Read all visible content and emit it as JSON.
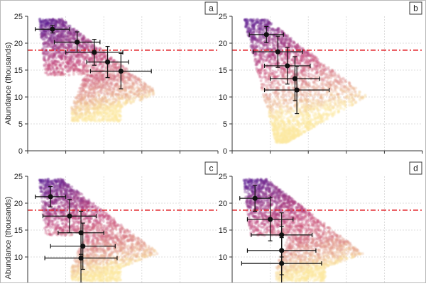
{
  "figure": {
    "ylabel": "Abundance  (thousands)",
    "colors": {
      "threshold": "#e0151b",
      "marker": "#111111",
      "grid": "#d4d4d4",
      "axis": "#333333",
      "cloud_high": "#5b1e93",
      "cloud_mid": "#c6487a",
      "cloud_low": "#fbe7a1"
    }
  },
  "chart_data": [
    {
      "type": "scatter",
      "panel_label": "a",
      "ylabel": "Abundance  (thousands)",
      "ylim": [
        0,
        25
      ],
      "yticks": [
        0,
        5,
        10,
        15,
        20,
        25
      ],
      "xlim": [
        0,
        10
      ],
      "grid": true,
      "threshold": 18.7,
      "points": [
        {
          "x": 1.3,
          "y": 22.6,
          "xerr": 0.9,
          "yerr": 0.7
        },
        {
          "x": 2.6,
          "y": 20.2,
          "xerr": 1.2,
          "yerr": 1.9
        },
        {
          "x": 3.5,
          "y": 18.3,
          "xerr": 1.5,
          "yerr": 2.4
        },
        {
          "x": 4.2,
          "y": 16.5,
          "xerr": 1.1,
          "yerr": 2.9
        },
        {
          "x": 4.9,
          "y": 14.8,
          "xerr": 1.6,
          "yerr": 3.3
        }
      ]
    },
    {
      "type": "scatter",
      "panel_label": "b",
      "ylabel": "",
      "ylim": [
        0,
        25
      ],
      "yticks": [
        0,
        5,
        10,
        15,
        20,
        25
      ],
      "xlim": [
        0,
        10
      ],
      "grid": true,
      "threshold": 18.7,
      "points": [
        {
          "x": 1.8,
          "y": 21.6,
          "xerr": 0.9,
          "yerr": 1.5
        },
        {
          "x": 2.4,
          "y": 18.4,
          "xerr": 1.3,
          "yerr": 2.9
        },
        {
          "x": 2.9,
          "y": 15.8,
          "xerr": 1.2,
          "yerr": 3.4
        },
        {
          "x": 3.3,
          "y": 13.4,
          "xerr": 1.3,
          "yerr": 4.1
        },
        {
          "x": 3.4,
          "y": 11.3,
          "xerr": 1.7,
          "yerr": 4.4
        }
      ]
    },
    {
      "type": "scatter",
      "panel_label": "c",
      "ylabel": "Abundance  (thousands)",
      "ylim": [
        5,
        25
      ],
      "yticks": [
        10,
        15,
        20,
        25
      ],
      "xlim": [
        0,
        10
      ],
      "grid": true,
      "threshold": 18.7,
      "points": [
        {
          "x": 1.2,
          "y": 21.2,
          "xerr": 0.8,
          "yerr": 1.9
        },
        {
          "x": 2.2,
          "y": 17.6,
          "xerr": 1.4,
          "yerr": 3.1
        },
        {
          "x": 2.8,
          "y": 14.5,
          "xerr": 1.2,
          "yerr": 4.0
        },
        {
          "x": 2.9,
          "y": 12.0,
          "xerr": 1.7,
          "yerr": 4.3
        },
        {
          "x": 2.8,
          "y": 9.8,
          "xerr": 1.9,
          "yerr": 4.6
        }
      ]
    },
    {
      "type": "scatter",
      "panel_label": "d",
      "ylabel": "",
      "ylim": [
        5,
        25
      ],
      "yticks": [
        10,
        15,
        20,
        25
      ],
      "xlim": [
        0,
        10
      ],
      "grid": true,
      "threshold": 18.7,
      "points": [
        {
          "x": 1.2,
          "y": 20.9,
          "xerr": 0.8,
          "yerr": 2.4
        },
        {
          "x": 2.0,
          "y": 17.0,
          "xerr": 1.2,
          "yerr": 4.0
        },
        {
          "x": 2.6,
          "y": 14.1,
          "xerr": 1.6,
          "yerr": 4.1
        },
        {
          "x": 2.6,
          "y": 11.2,
          "xerr": 1.8,
          "yerr": 4.5
        },
        {
          "x": 2.6,
          "y": 8.8,
          "xerr": 2.1,
          "yerr": 4.8
        }
      ]
    }
  ]
}
